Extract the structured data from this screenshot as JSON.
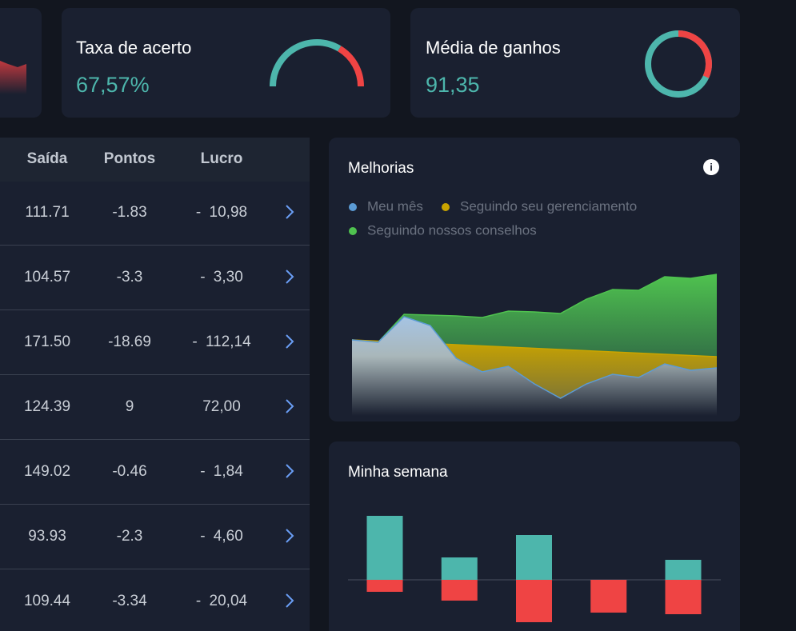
{
  "kpis": [
    {
      "title": "Taxa de acerto",
      "value": "67,57%"
    },
    {
      "title": "Média de ganhos",
      "value": "91,35"
    }
  ],
  "table": {
    "columns": [
      "Saída",
      "Pontos",
      "Lucro"
    ],
    "rows": [
      [
        "111.71",
        "-1.83",
        "- 10,98"
      ],
      [
        "104.57",
        "-3.3",
        "- 3,30"
      ],
      [
        "171.50",
        "-18.69",
        "- 112,14"
      ],
      [
        "124.39",
        "9",
        "72,00"
      ],
      [
        "149.02",
        "-0.46",
        "- 1,84"
      ],
      [
        "93.93",
        "-2.3",
        "- 4,60"
      ],
      [
        "109.44",
        "-3.34",
        "- 20,04"
      ]
    ]
  },
  "chart_data": [
    {
      "type": "area",
      "title": "Melhorias",
      "series": [
        {
          "name": "Meu mês",
          "color": "#5b9bd5",
          "values": [
            95,
            92,
            124,
            113,
            72,
            55,
            62,
            40,
            22,
            40,
            52,
            48,
            65,
            57,
            60
          ]
        },
        {
          "name": "Seguindo seu gerenciamento",
          "color": "#c9a400",
          "values": [
            95,
            93.5,
            92,
            90.5,
            89,
            87.5,
            86,
            84.5,
            83,
            81.5,
            80,
            78.5,
            77,
            75.5,
            74
          ]
        },
        {
          "name": "Seguindo nossos conselhos",
          "color": "#4fc24f",
          "values": [
            95,
            92,
            127,
            126,
            125,
            123,
            131,
            130,
            128,
            146,
            158,
            157,
            174,
            172,
            177
          ]
        }
      ]
    },
    {
      "type": "bar",
      "title": "Minha semana",
      "series": [
        {
          "color": "#4db6ac",
          "values": [
            80,
            28,
            56,
            0,
            25
          ]
        },
        {
          "color": "#ef4444",
          "values": [
            -15,
            -26,
            -53,
            -41,
            -43
          ]
        }
      ]
    }
  ]
}
